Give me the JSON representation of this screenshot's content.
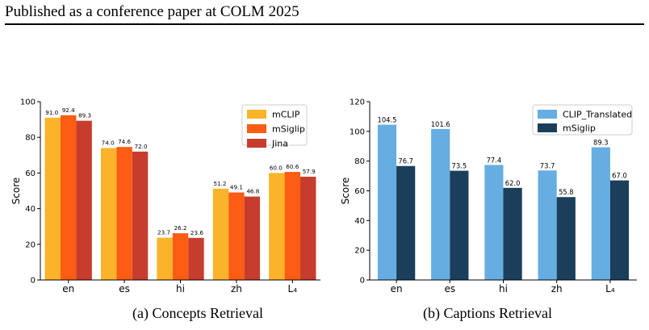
{
  "header": {
    "text": "Published as a conference paper at COLM 2025"
  },
  "captions": {
    "a": "(a) Concepts Retrieval",
    "b": "(b) Captions Retrieval"
  },
  "chart_data": [
    {
      "type": "bar",
      "ylabel": "Score",
      "ylim": [
        0,
        100
      ],
      "yticks": [
        0,
        20,
        40,
        60,
        80,
        100
      ],
      "categories": [
        "en",
        "es",
        "hi",
        "zh",
        "L₄"
      ],
      "legend_position": "top-right",
      "series": [
        {
          "name": "mCLIP",
          "color": "#FBB32A",
          "values": [
            91.0,
            74.0,
            23.7,
            51.2,
            60.0
          ],
          "labels": [
            "91.0",
            "74.0",
            "23.7",
            "51.2",
            "60.0"
          ]
        },
        {
          "name": "mSiglip",
          "color": "#FC5C14",
          "values": [
            92.4,
            74.6,
            26.2,
            49.1,
            60.6
          ],
          "labels": [
            "92.4",
            "74.6",
            "26.2",
            "49.1",
            "60.6"
          ]
        },
        {
          "name": "Jina",
          "color": "#C73D2D",
          "values": [
            89.3,
            72.0,
            23.6,
            46.8,
            57.9
          ],
          "labels": [
            "89.3",
            "72.0",
            "23.6",
            "46.8",
            "57.9"
          ]
        }
      ]
    },
    {
      "type": "bar",
      "ylabel": "Score",
      "ylim": [
        0,
        120
      ],
      "yticks": [
        0,
        20,
        40,
        60,
        80,
        100,
        120
      ],
      "categories": [
        "en",
        "es",
        "hi",
        "zh",
        "L₄"
      ],
      "legend_position": "top-right",
      "series": [
        {
          "name": "CLIP_Translated",
          "color": "#66ADE1",
          "values": [
            104.5,
            101.6,
            77.4,
            73.7,
            89.3
          ],
          "labels": [
            "104.5",
            "101.6",
            "77.4",
            "73.7",
            "89.3"
          ]
        },
        {
          "name": "mSiglip",
          "color": "#1B3F5B",
          "values": [
            76.7,
            73.5,
            62.0,
            55.8,
            67.0
          ],
          "labels": [
            "76.7",
            "73.5",
            "62.0",
            "55.8",
            "67.0"
          ]
        }
      ]
    }
  ]
}
